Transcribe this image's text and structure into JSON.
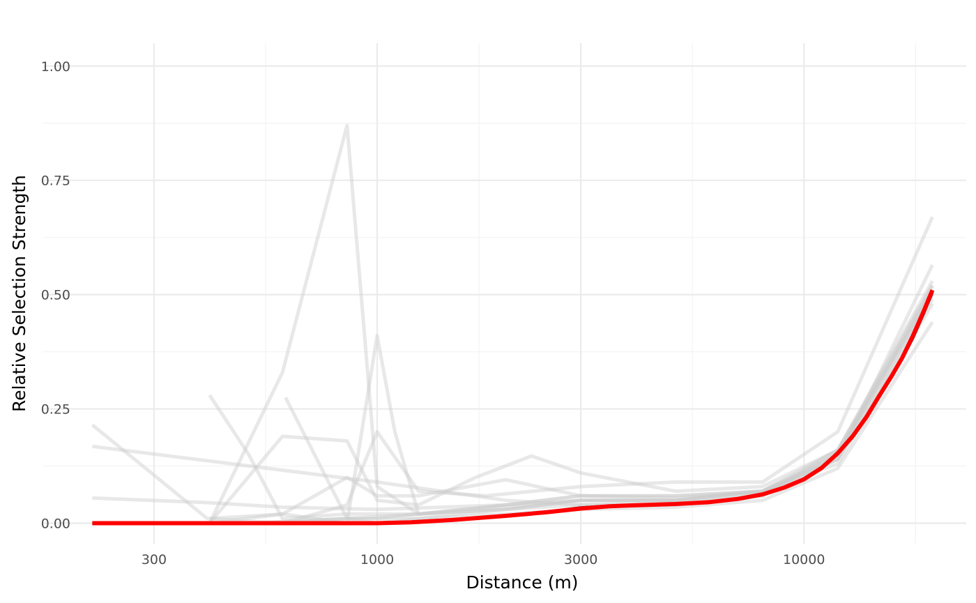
{
  "chart_data": {
    "type": "line",
    "title": "",
    "xlabel": "Distance (m)",
    "ylabel": "Relative Selection Strength",
    "x_scale": "log10",
    "xlim": [
      165,
      24000
    ],
    "ylim": [
      -0.045,
      1.05
    ],
    "x_ticks": [
      300,
      1000,
      3000,
      10000
    ],
    "x_tick_labels": [
      "300",
      "1000",
      "3000",
      "10000"
    ],
    "y_ticks": [
      0,
      0.25,
      0.5,
      0.75,
      1.0
    ],
    "y_tick_labels": [
      "0.00",
      "0.25",
      "0.50",
      "0.75",
      "1.00"
    ],
    "grid": true,
    "legend": "none",
    "colors": {
      "mean": "#000000",
      "fit": "#ff0000",
      "replicates": "#cccccc"
    },
    "series": [
      {
        "role": "replicate",
        "x": [
          215,
          400,
          600,
          850,
          1000,
          1250,
          2000,
          3000,
          5000,
          8000,
          12000,
          20000
        ],
        "y": [
          0.215,
          0.01,
          0.0,
          0.01,
          0.01,
          0.02,
          0.03,
          0.04,
          0.04,
          0.06,
          0.15,
          0.51
        ]
      },
      {
        "role": "replicate",
        "x": [
          215,
          1000,
          2000,
          3000,
          5000,
          8000,
          12000,
          20000
        ],
        "y": [
          0.168,
          0.09,
          0.05,
          0.04,
          0.045,
          0.06,
          0.16,
          0.53
        ]
      },
      {
        "role": "replicate",
        "x": [
          215,
          400,
          600,
          1000,
          2000,
          3000,
          5000,
          8000,
          12000,
          20000
        ],
        "y": [
          0.055,
          0.045,
          0.035,
          0.03,
          0.04,
          0.05,
          0.05,
          0.07,
          0.16,
          0.5
        ]
      },
      {
        "role": "replicate",
        "x": [
          405,
          500,
          600,
          850,
          1000,
          1250,
          2000,
          3000,
          5000,
          8000,
          12000,
          20000
        ],
        "y": [
          0.28,
          0.15,
          0.01,
          0.02,
          0.02,
          0.02,
          0.04,
          0.06,
          0.06,
          0.07,
          0.14,
          0.49
        ]
      },
      {
        "role": "replicate",
        "x": [
          405,
          600,
          850,
          1000,
          1250,
          2000,
          3000,
          5000,
          8000,
          12000,
          20000
        ],
        "y": [
          0.0,
          0.33,
          0.87,
          0.08,
          0.02,
          0.03,
          0.05,
          0.05,
          0.07,
          0.15,
          0.52
        ]
      },
      {
        "role": "replicate",
        "x": [
          405,
          600,
          850,
          1000,
          1250,
          1700,
          2300,
          3000,
          5000,
          8000,
          12000,
          20000
        ],
        "y": [
          0.0,
          0.19,
          0.18,
          0.05,
          0.04,
          0.1,
          0.147,
          0.11,
          0.07,
          0.08,
          0.16,
          0.52
        ]
      },
      {
        "role": "replicate",
        "x": [
          610,
          850,
          1000,
          1250,
          2000,
          3000,
          5000,
          8000,
          12000,
          20000
        ],
        "y": [
          0.275,
          0.01,
          0.0,
          0.01,
          0.03,
          0.05,
          0.05,
          0.07,
          0.14,
          0.5
        ]
      },
      {
        "role": "replicate",
        "x": [
          405,
          600,
          850,
          1000,
          1100,
          1250,
          2000,
          3000,
          5000,
          8000,
          12000,
          20000
        ],
        "y": [
          0.01,
          0.02,
          0.0,
          0.41,
          0.2,
          0.02,
          0.04,
          0.06,
          0.06,
          0.07,
          0.15,
          0.51
        ]
      },
      {
        "role": "replicate",
        "x": [
          405,
          600,
          850,
          1000,
          1250,
          2000,
          3000,
          5000,
          8000,
          12000,
          20000
        ],
        "y": [
          0.0,
          0.02,
          0.1,
          0.06,
          0.06,
          0.095,
          0.06,
          0.055,
          0.07,
          0.13,
          0.48
        ]
      },
      {
        "role": "replicate",
        "x": [
          405,
          600,
          850,
          1000,
          1250,
          1800,
          3000,
          5000,
          8000,
          12000,
          20000
        ],
        "y": [
          0.0,
          0.0,
          0.04,
          0.2,
          0.07,
          0.06,
          0.08,
          0.09,
          0.09,
          0.2,
          0.67
        ]
      },
      {
        "role": "replicate",
        "x": [
          500,
          850,
          1250,
          2000,
          3000,
          5000,
          8000,
          12000,
          20000
        ],
        "y": [
          0.0,
          0.01,
          0.02,
          0.035,
          0.05,
          0.05,
          0.065,
          0.14,
          0.565
        ]
      },
      {
        "role": "replicate",
        "x": [
          500,
          850,
          1250,
          2000,
          3000,
          5000,
          8000,
          12000,
          20000
        ],
        "y": [
          0.0,
          0.01,
          0.01,
          0.02,
          0.03,
          0.035,
          0.05,
          0.12,
          0.44
        ]
      },
      {
        "role": "mean",
        "x": [
          215,
          400,
          600,
          850,
          1000,
          1200,
          1500,
          2000,
          2500,
          3000,
          3500,
          4000,
          5000,
          6000,
          7000,
          8000,
          9000,
          10000,
          11000,
          12000,
          13000,
          14000,
          15000,
          16000,
          17000,
          18000,
          19000,
          20000
        ],
        "y": [
          0.0,
          0.0,
          0.0,
          0.0,
          0.001,
          0.003,
          0.008,
          0.017,
          0.025,
          0.034,
          0.038,
          0.04,
          0.042,
          0.046,
          0.054,
          0.064,
          0.079,
          0.097,
          0.122,
          0.155,
          0.192,
          0.234,
          0.28,
          0.32,
          0.36,
          0.405,
          0.455,
          0.505
        ]
      },
      {
        "role": "fit",
        "x": [
          215,
          400,
          600,
          850,
          1000,
          1200,
          1500,
          2000,
          2500,
          3000,
          3500,
          4000,
          5000,
          6000,
          7000,
          8000,
          9000,
          10000,
          11000,
          12000,
          13000,
          14000,
          15000,
          16000,
          17000,
          18000,
          19000,
          20000
        ],
        "y": [
          0.0,
          0.0,
          0.0,
          0.0,
          0.0,
          0.002,
          0.007,
          0.016,
          0.024,
          0.032,
          0.037,
          0.039,
          0.042,
          0.046,
          0.053,
          0.063,
          0.078,
          0.096,
          0.121,
          0.153,
          0.19,
          0.232,
          0.278,
          0.32,
          0.362,
          0.41,
          0.46,
          0.51
        ]
      }
    ]
  }
}
